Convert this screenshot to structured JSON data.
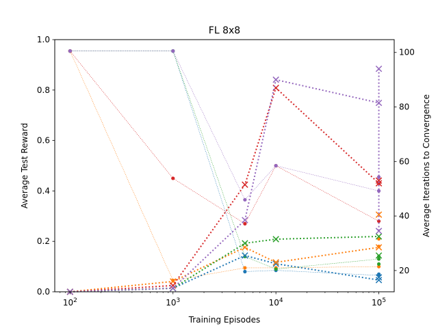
{
  "chart_data": {
    "type": "line",
    "title": "FL 8x8",
    "xlabel": "Training Episodes",
    "ylabel": "Average Test Reward",
    "y2label": "Average Iterations to Convergence",
    "xscale": "log",
    "xlim": [
      71,
      141000
    ],
    "ylim": [
      0,
      1.0
    ],
    "y2lim": [
      12.2,
      104.7
    ],
    "x": [
      100,
      1000,
      5000,
      10000,
      100000
    ],
    "xticks": [
      {
        "value": 100,
        "base": "10",
        "exp": "2"
      },
      {
        "value": 1000,
        "base": "10",
        "exp": "3"
      },
      {
        "value": 10000,
        "base": "10",
        "exp": "4"
      },
      {
        "value": 100000,
        "base": "10",
        "exp": "5"
      }
    ],
    "yticks": [
      "0.0",
      "0.2",
      "0.4",
      "0.6",
      "0.8",
      "1.0"
    ],
    "y2ticks": [
      "20",
      "40",
      "60",
      "80",
      "100"
    ],
    "grid": false,
    "legend": "none",
    "colors": [
      "#1f77b4",
      "#ff7f0e",
      "#2ca02c",
      "#d62728",
      "#9467bd"
    ],
    "reward_series": [
      {
        "color": "#1f77b4",
        "values": [
          0.955,
          0.955,
          0.08,
          0.085,
          0.065
        ]
      },
      {
        "color": "#ff7f0e",
        "values": [
          0.955,
          0.045,
          0.095,
          0.095,
          0.1
        ]
      },
      {
        "color": "#2ca02c",
        "values": [
          0.955,
          0.955,
          0.14,
          0.09,
          0.13
        ]
      },
      {
        "color": "#d62728",
        "values": [
          0.955,
          0.45,
          0.27,
          0.5,
          0.28
        ]
      },
      {
        "color": "#9467bd",
        "values": [
          0.955,
          0.955,
          0.365,
          0.5,
          0.4
        ]
      }
    ],
    "reward_extra_points": [
      {
        "color": "#1f77b4",
        "x": 100000,
        "values": [
          0.07
        ]
      },
      {
        "color": "#ff7f0e",
        "x": 100000,
        "values": [
          0.18,
          0.21
        ]
      },
      {
        "color": "#2ca02c",
        "x": 100000,
        "values": [
          0.11,
          0.14
        ]
      },
      {
        "color": "#d62728",
        "x": 100000,
        "values": [
          0.43
        ]
      },
      {
        "color": "#9467bd",
        "x": 100000,
        "values": [
          0.455
        ]
      }
    ],
    "iteration_series": [
      {
        "color": "#1f77b4",
        "values": [
          12.2,
          13.5,
          25.5,
          22.5,
          16.5
        ]
      },
      {
        "color": "#ff7f0e",
        "values": [
          12.2,
          16,
          28.5,
          23,
          28.5
        ]
      },
      {
        "color": "#2ca02c",
        "values": [
          12.2,
          13.5,
          30,
          31.5,
          32.5
        ]
      },
      {
        "color": "#d62728",
        "values": [
          12.2,
          14.5,
          51.5,
          87,
          52
        ]
      },
      {
        "color": "#9467bd",
        "values": [
          12.2,
          13.5,
          38.5,
          90,
          81.5
        ]
      }
    ],
    "iteration_extra_points": [
      {
        "color": "#1f77b4",
        "x": 100000,
        "values": [
          17.5
        ]
      },
      {
        "color": "#ff7f0e",
        "x": 100000,
        "values": [
          40.5
        ]
      },
      {
        "color": "#2ca02c",
        "x": 100000,
        "values": [
          25.5
        ]
      },
      {
        "color": "#d62728",
        "x": 100000,
        "values": [
          53
        ]
      },
      {
        "color": "#9467bd",
        "x": 100000,
        "values": [
          94,
          34.5
        ]
      }
    ]
  }
}
